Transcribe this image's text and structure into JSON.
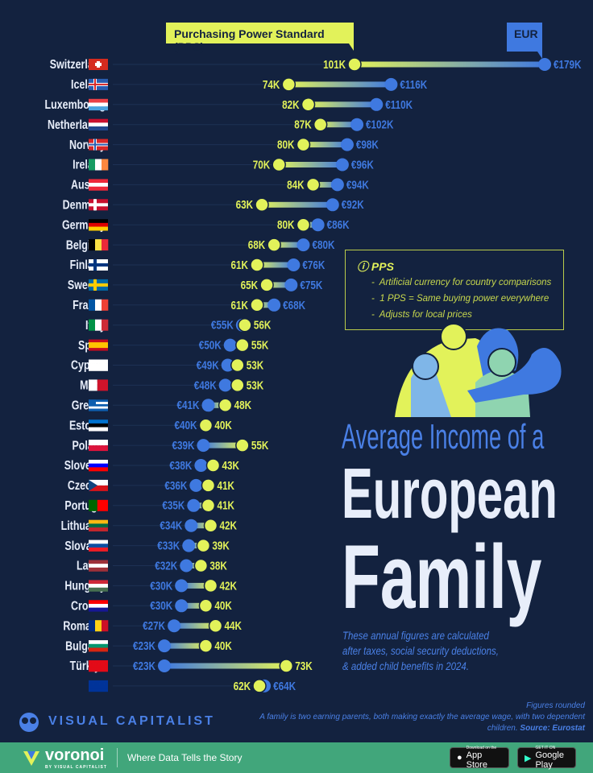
{
  "chart_data": {
    "type": "dumbbell",
    "series": [
      {
        "name": "Purchasing Power Standard (PPS)",
        "color": "#e2f25a"
      },
      {
        "name": "EUR",
        "color": "#3f79e0"
      }
    ],
    "rows": [
      {
        "country": "Switzerland",
        "pps": 101,
        "eur": 179,
        "pps_label": "101K",
        "eur_label": "€179K",
        "flag": {
          "type": "cross",
          "colors": [
            "#d52b1e",
            "#ffffff"
          ]
        }
      },
      {
        "country": "Iceland",
        "pps": 74,
        "eur": 116,
        "pps_label": "74K",
        "eur_label": "€116K",
        "flag": {
          "type": "nordic",
          "colors": [
            "#2a5db0",
            "#ffffff",
            "#d72828"
          ]
        }
      },
      {
        "country": "Luxembourg",
        "pps": 82,
        "eur": 110,
        "pps_label": "82K",
        "eur_label": "€110K",
        "flag": {
          "type": "h",
          "colors": [
            "#ea4046",
            "#ffffff",
            "#4aa3df"
          ]
        }
      },
      {
        "country": "Netherlands",
        "pps": 87,
        "eur": 102,
        "pps_label": "87K",
        "eur_label": "€102K",
        "flag": {
          "type": "h",
          "colors": [
            "#c8102e",
            "#ffffff",
            "#21468b"
          ]
        }
      },
      {
        "country": "Norway",
        "pps": 80,
        "eur": 98,
        "pps_label": "80K",
        "eur_label": "€98K",
        "flag": {
          "type": "nordic",
          "colors": [
            "#d72828",
            "#ffffff",
            "#2a5db0"
          ]
        }
      },
      {
        "country": "Ireland",
        "pps": 70,
        "eur": 96,
        "pps_label": "70K",
        "eur_label": "€96K",
        "flag": {
          "type": "v",
          "colors": [
            "#169b62",
            "#ffffff",
            "#ff883e"
          ]
        }
      },
      {
        "country": "Austria",
        "pps": 84,
        "eur": 94,
        "pps_label": "84K",
        "eur_label": "€94K",
        "flag": {
          "type": "h",
          "colors": [
            "#ed2939",
            "#ffffff",
            "#ed2939"
          ]
        }
      },
      {
        "country": "Denmark",
        "pps": 63,
        "eur": 92,
        "pps_label": "63K",
        "eur_label": "€92K",
        "flag": {
          "type": "nordic",
          "colors": [
            "#c8102e",
            "#ffffff",
            "#ffffff"
          ]
        }
      },
      {
        "country": "Germany",
        "pps": 80,
        "eur": 86,
        "pps_label": "80K",
        "eur_label": "€86K",
        "flag": {
          "type": "h",
          "colors": [
            "#000000",
            "#dd0000",
            "#ffce00"
          ]
        }
      },
      {
        "country": "Belgium",
        "pps": 68,
        "eur": 80,
        "pps_label": "68K",
        "eur_label": "€80K",
        "flag": {
          "type": "v",
          "colors": [
            "#000000",
            "#fae042",
            "#ed2939"
          ]
        }
      },
      {
        "country": "Finland",
        "pps": 61,
        "eur": 76,
        "pps_label": "61K",
        "eur_label": "€76K",
        "flag": {
          "type": "nordic",
          "colors": [
            "#ffffff",
            "#003580",
            "#003580"
          ]
        }
      },
      {
        "country": "Sweden",
        "pps": 65,
        "eur": 75,
        "pps_label": "65K",
        "eur_label": "€75K",
        "flag": {
          "type": "nordic",
          "colors": [
            "#006aa7",
            "#fecc00",
            "#fecc00"
          ]
        }
      },
      {
        "country": "France",
        "pps": 61,
        "eur": 68,
        "pps_label": "61K",
        "eur_label": "€68K",
        "flag": {
          "type": "v",
          "colors": [
            "#0055a4",
            "#ffffff",
            "#ef4135"
          ]
        }
      },
      {
        "country": "Italy",
        "pps": 56,
        "eur": 55,
        "pps_label": "56K",
        "eur_label": "€55K",
        "flag": {
          "type": "v",
          "colors": [
            "#009246",
            "#ffffff",
            "#ce2b37"
          ]
        }
      },
      {
        "country": "Spain",
        "pps": 55,
        "eur": 50,
        "pps_label": "55K",
        "eur_label": "€50K",
        "flag": {
          "type": "h3",
          "colors": [
            "#c60b1e",
            "#ffc400",
            "#c60b1e"
          ]
        }
      },
      {
        "country": "Cyprus",
        "pps": 53,
        "eur": 49,
        "pps_label": "53K",
        "eur_label": "€49K",
        "flag": {
          "type": "h",
          "colors": [
            "#ffffff",
            "#ffffff",
            "#ffffff"
          ]
        }
      },
      {
        "country": "Malta",
        "pps": 53,
        "eur": 48,
        "pps_label": "53K",
        "eur_label": "€48K",
        "flag": {
          "type": "v2",
          "colors": [
            "#ffffff",
            "#cf142b"
          ]
        }
      },
      {
        "country": "Greece",
        "pps": 48,
        "eur": 41,
        "pps_label": "48K",
        "eur_label": "€41K",
        "flag": {
          "type": "h5",
          "colors": [
            "#0d5eaf",
            "#ffffff"
          ]
        }
      },
      {
        "country": "Estonia",
        "pps": 40,
        "eur": 40,
        "pps_label": "40K",
        "eur_label": "€40K",
        "flag": {
          "type": "h",
          "colors": [
            "#0072ce",
            "#000000",
            "#ffffff"
          ]
        }
      },
      {
        "country": "Poland",
        "pps": 55,
        "eur": 39,
        "pps_label": "55K",
        "eur_label": "€39K",
        "flag": {
          "type": "h2",
          "colors": [
            "#ffffff",
            "#dc143c"
          ]
        }
      },
      {
        "country": "Slovenia",
        "pps": 43,
        "eur": 38,
        "pps_label": "43K",
        "eur_label": "€38K",
        "flag": {
          "type": "h",
          "colors": [
            "#ffffff",
            "#0000ff",
            "#ff0000"
          ]
        }
      },
      {
        "country": "Czechia",
        "pps": 41,
        "eur": 36,
        "pps_label": "41K",
        "eur_label": "€36K",
        "flag": {
          "type": "cz",
          "colors": [
            "#ffffff",
            "#d7141a",
            "#11457e"
          ]
        }
      },
      {
        "country": "Portugal",
        "pps": 41,
        "eur": 35,
        "pps_label": "41K",
        "eur_label": "€35K",
        "flag": {
          "type": "v2",
          "colors": [
            "#006600",
            "#ff0000"
          ]
        }
      },
      {
        "country": "Lithuania",
        "pps": 42,
        "eur": 34,
        "pps_label": "42K",
        "eur_label": "€34K",
        "flag": {
          "type": "h",
          "colors": [
            "#fdb913",
            "#006a44",
            "#c1272d"
          ]
        }
      },
      {
        "country": "Slovakia",
        "pps": 39,
        "eur": 33,
        "pps_label": "39K",
        "eur_label": "€33K",
        "flag": {
          "type": "h",
          "colors": [
            "#ffffff",
            "#0b4ea2",
            "#ee1c25"
          ]
        }
      },
      {
        "country": "Latvia",
        "pps": 38,
        "eur": 32,
        "pps_label": "38K",
        "eur_label": "€32K",
        "flag": {
          "type": "h",
          "colors": [
            "#9e3039",
            "#ffffff",
            "#9e3039"
          ]
        }
      },
      {
        "country": "Hungary",
        "pps": 42,
        "eur": 30,
        "pps_label": "42K",
        "eur_label": "€30K",
        "flag": {
          "type": "h",
          "colors": [
            "#ce2939",
            "#ffffff",
            "#477050"
          ]
        }
      },
      {
        "country": "Croatia",
        "pps": 40,
        "eur": 30,
        "pps_label": "40K",
        "eur_label": "€30K",
        "flag": {
          "type": "h",
          "colors": [
            "#ff0000",
            "#ffffff",
            "#171796"
          ]
        }
      },
      {
        "country": "Romania",
        "pps": 44,
        "eur": 27,
        "pps_label": "44K",
        "eur_label": "€27K",
        "flag": {
          "type": "v",
          "colors": [
            "#002b7f",
            "#fcd116",
            "#ce1126"
          ]
        }
      },
      {
        "country": "Bulgaria",
        "pps": 40,
        "eur": 23,
        "pps_label": "40K",
        "eur_label": "€23K",
        "flag": {
          "type": "h",
          "colors": [
            "#ffffff",
            "#00966e",
            "#d62612"
          ]
        }
      },
      {
        "country": "Türkiye",
        "pps": 73,
        "eur": 23,
        "pps_label": "73K",
        "eur_label": "€23K",
        "flag": {
          "type": "h",
          "colors": [
            "#e30a17",
            "#e30a17",
            "#e30a17"
          ]
        }
      },
      {
        "country": "EU",
        "pps": 62,
        "eur": 64,
        "pps_label": "62K",
        "eur_label": "€64K",
        "flag": {
          "type": "h",
          "colors": [
            "#003399",
            "#003399",
            "#003399"
          ]
        }
      }
    ]
  },
  "legend": {
    "pps": "Purchasing Power Standard (PPS)",
    "eur": "EUR"
  },
  "info_box": {
    "title": "PPS",
    "items": [
      "Artificial currency for country comparisons",
      "1 PPS = Same buying power everywhere",
      "Adjusts for local prices"
    ]
  },
  "title": {
    "line1": "Average Income of a",
    "line2": "European",
    "line3": "Family"
  },
  "notes": [
    "These annual figures are calculated",
    "after taxes, social security deductions,",
    "& added child benefits in 2024."
  ],
  "footer": {
    "brand": "VISUAL CAPITALIST",
    "figures_note": "Figures rounded",
    "definition": "A family is two earning parents, both making exactly the average wage, with two dependent children.",
    "source": "Source: Eurostat"
  },
  "bottom_bar": {
    "logo": "voronoi",
    "logo_sub": "BY VISUAL CAPITALIST",
    "tagline": "Where Data Tells the Story",
    "app_store_small": "Download on the",
    "app_store": "App Store",
    "google_small": "GET IT ON",
    "google": "Google Play",
    "color": "#41a67b"
  }
}
